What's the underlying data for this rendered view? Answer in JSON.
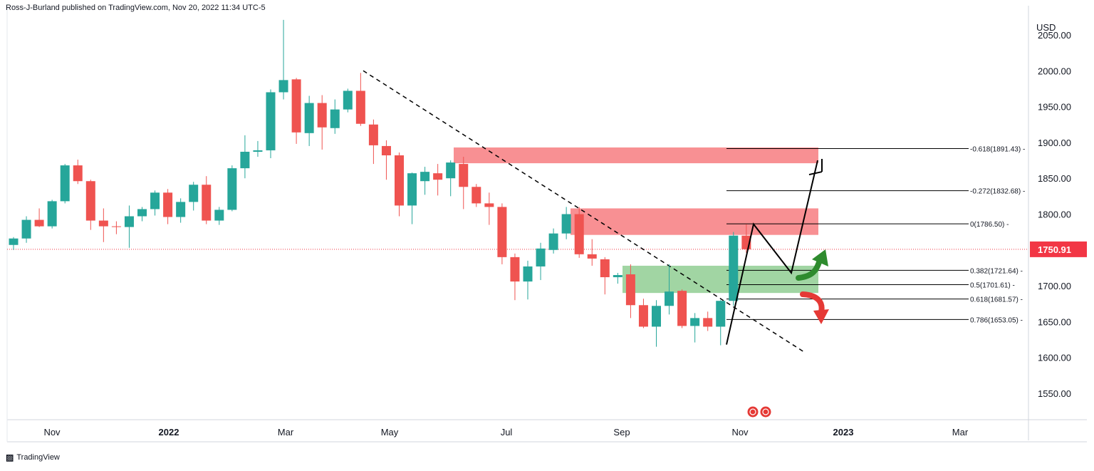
{
  "header": {
    "publisher": "Ross-J-Burland published on TradingView.com, Nov 20, 2022 11:34 UTC-5"
  },
  "footer": {
    "brand": "TradingView"
  },
  "colors": {
    "up": "#26a69a",
    "down": "#ef5350",
    "zone_red": "#f77c80",
    "zone_green": "#81c784",
    "last_price_bg": "#f23645",
    "axis_text": "#131722"
  },
  "chart_data": {
    "type": "candlestick",
    "timeframe": "weekly",
    "currency_label": "USD",
    "ylim": [
      1500,
      2080
    ],
    "y_ticks": [
      1550,
      1600,
      1650,
      1700,
      1750,
      1800,
      1850,
      1900,
      1950,
      2000,
      2050
    ],
    "y_tick_labels": [
      "1550.00",
      "1600.00",
      "1650.00",
      "1700.00",
      "1750.00",
      "1800.00",
      "1850.00",
      "1900.00",
      "1950.00",
      "2000.00",
      "2050.00"
    ],
    "x_tick_labels": [
      "Nov",
      "2022",
      "Mar",
      "May",
      "Jul",
      "Sep",
      "Nov",
      "2023",
      "Mar"
    ],
    "last_price": "1750.91",
    "candles": [
      {
        "o": 1757,
        "h": 1768,
        "l": 1750,
        "c": 1766
      },
      {
        "o": 1766,
        "h": 1797,
        "l": 1760,
        "c": 1792
      },
      {
        "o": 1792,
        "h": 1808,
        "l": 1782,
        "c": 1783
      },
      {
        "o": 1783,
        "h": 1820,
        "l": 1780,
        "c": 1818
      },
      {
        "o": 1818,
        "h": 1870,
        "l": 1815,
        "c": 1868
      },
      {
        "o": 1868,
        "h": 1876,
        "l": 1842,
        "c": 1846
      },
      {
        "o": 1846,
        "h": 1848,
        "l": 1778,
        "c": 1791
      },
      {
        "o": 1791,
        "h": 1808,
        "l": 1761,
        "c": 1783
      },
      {
        "o": 1783,
        "h": 1790,
        "l": 1772,
        "c": 1782
      },
      {
        "o": 1782,
        "h": 1812,
        "l": 1753,
        "c": 1797
      },
      {
        "o": 1797,
        "h": 1810,
        "l": 1790,
        "c": 1807
      },
      {
        "o": 1807,
        "h": 1833,
        "l": 1798,
        "c": 1830
      },
      {
        "o": 1830,
        "h": 1835,
        "l": 1786,
        "c": 1796
      },
      {
        "o": 1796,
        "h": 1822,
        "l": 1788,
        "c": 1817
      },
      {
        "o": 1817,
        "h": 1845,
        "l": 1805,
        "c": 1841
      },
      {
        "o": 1841,
        "h": 1853,
        "l": 1786,
        "c": 1791
      },
      {
        "o": 1791,
        "h": 1810,
        "l": 1785,
        "c": 1806
      },
      {
        "o": 1806,
        "h": 1868,
        "l": 1804,
        "c": 1864
      },
      {
        "o": 1864,
        "h": 1910,
        "l": 1850,
        "c": 1887
      },
      {
        "o": 1887,
        "h": 1902,
        "l": 1880,
        "c": 1889
      },
      {
        "o": 1889,
        "h": 1974,
        "l": 1878,
        "c": 1970
      },
      {
        "o": 1970,
        "h": 2071,
        "l": 1960,
        "c": 1987
      },
      {
        "o": 1988,
        "h": 1990,
        "l": 1898,
        "c": 1914
      },
      {
        "o": 1913,
        "h": 1965,
        "l": 1895,
        "c": 1955
      },
      {
        "o": 1955,
        "h": 1966,
        "l": 1890,
        "c": 1921
      },
      {
        "o": 1920,
        "h": 1960,
        "l": 1912,
        "c": 1946
      },
      {
        "o": 1946,
        "h": 1975,
        "l": 1942,
        "c": 1972
      },
      {
        "o": 1972,
        "h": 1997,
        "l": 1923,
        "c": 1926
      },
      {
        "o": 1925,
        "h": 1932,
        "l": 1870,
        "c": 1896
      },
      {
        "o": 1895,
        "h": 1903,
        "l": 1848,
        "c": 1882
      },
      {
        "o": 1882,
        "h": 1886,
        "l": 1797,
        "c": 1812
      },
      {
        "o": 1812,
        "h": 1858,
        "l": 1786,
        "c": 1857
      },
      {
        "o": 1846,
        "h": 1866,
        "l": 1827,
        "c": 1859
      },
      {
        "o": 1857,
        "h": 1870,
        "l": 1826,
        "c": 1848
      },
      {
        "o": 1850,
        "h": 1875,
        "l": 1825,
        "c": 1872
      },
      {
        "o": 1870,
        "h": 1880,
        "l": 1807,
        "c": 1838
      },
      {
        "o": 1838,
        "h": 1842,
        "l": 1810,
        "c": 1815
      },
      {
        "o": 1815,
        "h": 1830,
        "l": 1785,
        "c": 1810
      },
      {
        "o": 1810,
        "h": 1815,
        "l": 1730,
        "c": 1740
      },
      {
        "o": 1740,
        "h": 1745,
        "l": 1680,
        "c": 1706
      },
      {
        "o": 1706,
        "h": 1735,
        "l": 1681,
        "c": 1727
      },
      {
        "o": 1727,
        "h": 1760,
        "l": 1708,
        "c": 1752
      },
      {
        "o": 1750,
        "h": 1780,
        "l": 1745,
        "c": 1773
      },
      {
        "o": 1773,
        "h": 1810,
        "l": 1765,
        "c": 1800
      },
      {
        "o": 1800,
        "h": 1810,
        "l": 1739,
        "c": 1744
      },
      {
        "o": 1744,
        "h": 1765,
        "l": 1728,
        "c": 1738
      },
      {
        "o": 1737,
        "h": 1740,
        "l": 1688,
        "c": 1712
      },
      {
        "o": 1712,
        "h": 1718,
        "l": 1703,
        "c": 1715
      },
      {
        "o": 1716,
        "h": 1730,
        "l": 1655,
        "c": 1673
      },
      {
        "o": 1673,
        "h": 1682,
        "l": 1641,
        "c": 1643
      },
      {
        "o": 1643,
        "h": 1680,
        "l": 1615,
        "c": 1672
      },
      {
        "o": 1672,
        "h": 1730,
        "l": 1660,
        "c": 1692
      },
      {
        "o": 1693,
        "h": 1695,
        "l": 1641,
        "c": 1644
      },
      {
        "o": 1644,
        "h": 1662,
        "l": 1621,
        "c": 1655
      },
      {
        "o": 1655,
        "h": 1664,
        "l": 1637,
        "c": 1643
      },
      {
        "o": 1643,
        "h": 1680,
        "l": 1617,
        "c": 1679
      },
      {
        "o": 1679,
        "h": 1775,
        "l": 1672,
        "c": 1770
      },
      {
        "o": 1770,
        "h": 1786,
        "l": 1746,
        "c": 1751
      }
    ],
    "zones": [
      {
        "type": "supply",
        "top": 1893,
        "bottom": 1871
      },
      {
        "type": "supply",
        "top": 1808,
        "bottom": 1771
      },
      {
        "type": "demand",
        "top": 1728,
        "bottom": 1690
      }
    ],
    "trendline": {
      "from": 2000,
      "to": 1618
    },
    "fib_levels": [
      {
        "label": "-0.618(1891.43)",
        "value": 1891.43
      },
      {
        "label": "-0.272(1832.68)",
        "value": 1832.68
      },
      {
        "label": "0(1786.50)",
        "value": 1786.5
      },
      {
        "label": "0.382(1721.64)",
        "value": 1721.64
      },
      {
        "label": "0.5(1701.61)",
        "value": 1701.61
      },
      {
        "label": "0.618(1681.57)",
        "value": 1681.57
      },
      {
        "label": "0.786(1653.05)",
        "value": 1653.05
      }
    ],
    "projection_path": [
      1618,
      1786,
      1718,
      1875
    ]
  }
}
